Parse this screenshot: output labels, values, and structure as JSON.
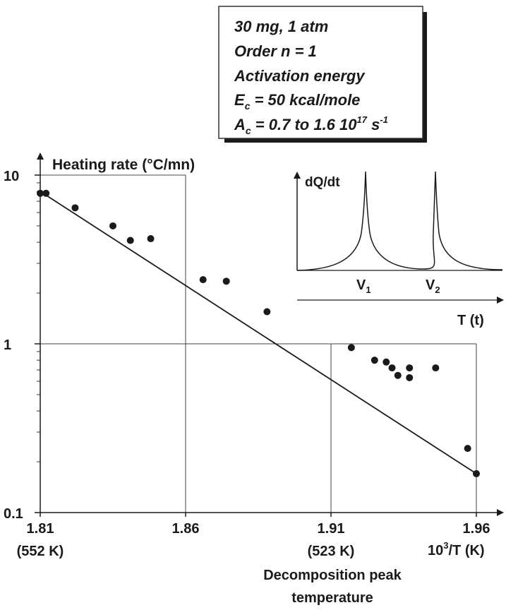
{
  "infobox": {
    "line1": "30 mg, 1 atm",
    "line2": "Order n = 1",
    "line3": "Activation energy",
    "line4_main": "E",
    "line4_sub": "c",
    "line4_rest": " = 50 kcal/mole",
    "line5_main": "A",
    "line5_sub": "c",
    "line5_rest": " = 0.7 to 1.6 10",
    "line5_exp1": "17",
    "line5_unit": " s",
    "line5_exp2": "-1"
  },
  "inset": {
    "ylabel": "dQ/dt",
    "xlabel": "T (t)",
    "peak1_main": "V",
    "peak1_sub": "1",
    "peak2_main": "V",
    "peak2_sub": "2"
  },
  "chart_data": {
    "type": "scatter",
    "title": "",
    "ylabel": "Heating rate (°C/mn)",
    "xlabel_main": "10",
    "xlabel_exp": "3",
    "xlabel_rest": "/T (K)",
    "xlabel_bottom_line1": "Decomposition peak",
    "xlabel_bottom_line2": "temperature",
    "y_scale": "log",
    "xlim": [
      1.81,
      1.96
    ],
    "ylim": [
      0.1,
      10
    ],
    "x_ticks": [
      {
        "value": 1.81,
        "label": "1.81",
        "sub": "(552 K)"
      },
      {
        "value": 1.86,
        "label": "1.86",
        "sub": ""
      },
      {
        "value": 1.91,
        "label": "1.91",
        "sub": "(523 K)"
      },
      {
        "value": 1.96,
        "label": "1.96",
        "sub": ""
      }
    ],
    "y_ticks": [
      {
        "value": 10,
        "label": "10"
      },
      {
        "value": 1,
        "label": "1"
      },
      {
        "value": 0.1,
        "label": "0.1"
      }
    ],
    "points": [
      {
        "x": 1.81,
        "y": 7.8
      },
      {
        "x": 1.812,
        "y": 7.8
      },
      {
        "x": 1.822,
        "y": 6.4
      },
      {
        "x": 1.835,
        "y": 5.0
      },
      {
        "x": 1.841,
        "y": 4.1
      },
      {
        "x": 1.848,
        "y": 4.2
      },
      {
        "x": 1.866,
        "y": 2.4
      },
      {
        "x": 1.874,
        "y": 2.35
      },
      {
        "x": 1.888,
        "y": 1.55
      },
      {
        "x": 1.917,
        "y": 0.95
      },
      {
        "x": 1.925,
        "y": 0.8
      },
      {
        "x": 1.929,
        "y": 0.78
      },
      {
        "x": 1.931,
        "y": 0.72
      },
      {
        "x": 1.933,
        "y": 0.65
      },
      {
        "x": 1.937,
        "y": 0.63
      },
      {
        "x": 1.937,
        "y": 0.72
      },
      {
        "x": 1.946,
        "y": 0.72
      },
      {
        "x": 1.957,
        "y": 0.24
      },
      {
        "x": 1.96,
        "y": 0.17
      }
    ],
    "fit_line": {
      "x": [
        1.81,
        1.96
      ],
      "y": [
        8.0,
        0.17
      ]
    },
    "reference_boxes": [
      {
        "x_max": 1.86,
        "y_max": 10
      },
      {
        "x_max": 1.91,
        "y_max": 1
      },
      {
        "x_max": 1.96,
        "y_max": 1
      }
    ]
  }
}
